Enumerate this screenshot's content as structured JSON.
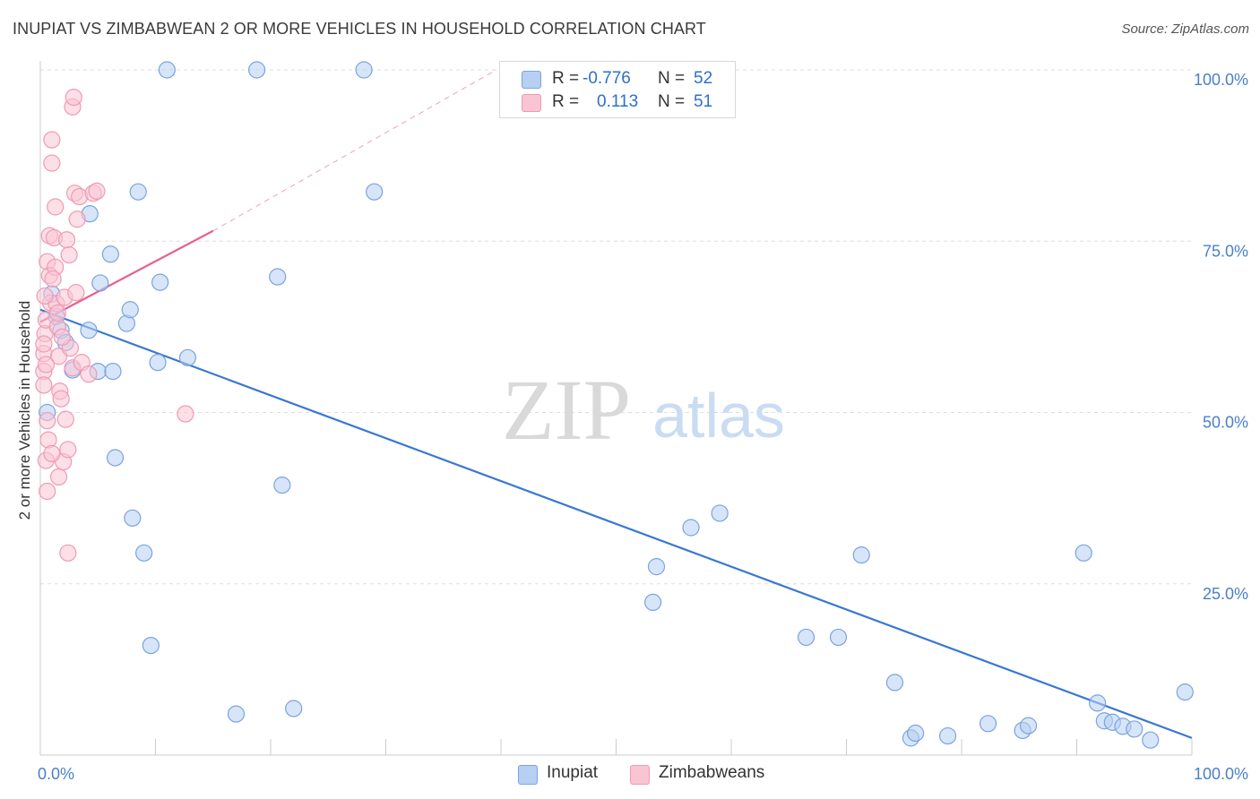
{
  "title": "INUPIAT VS ZIMBABWEAN 2 OR MORE VEHICLES IN HOUSEHOLD CORRELATION CHART",
  "source": "Source: ZipAtlas.com",
  "watermark": {
    "zip": "ZIP",
    "atlas": "atlas"
  },
  "legend": {
    "rows": [
      {
        "r_label": "R =",
        "r_value": "-0.776",
        "n_label": "N =",
        "n_value": "52",
        "fill": "#b7cff2",
        "stroke": "#7aa3e0"
      },
      {
        "r_label": "R =",
        "r_value": "0.113",
        "n_label": "N =",
        "n_value": "51",
        "fill": "#f9c4d4",
        "stroke": "#ef9ab4"
      }
    ]
  },
  "bottom_legend": [
    {
      "label": "Inupiat",
      "fill": "#b7cff2",
      "stroke": "#7aa3e0"
    },
    {
      "label": "Zimbabweans",
      "fill": "#f9c4d4",
      "stroke": "#ef9ab4"
    }
  ],
  "chart_data": {
    "type": "scatter",
    "title": "INUPIAT VS ZIMBABWEAN 2 OR MORE VEHICLES IN HOUSEHOLD CORRELATION CHART",
    "xlabel": "",
    "ylabel": "2 or more Vehicles in Household",
    "xlim": [
      0,
      100
    ],
    "ylim": [
      0,
      100
    ],
    "x_tick_labels": [
      {
        "value": 0,
        "label": "0.0%"
      },
      {
        "value": 100,
        "label": "100.0%"
      }
    ],
    "y_tick_labels": [
      {
        "value": 25,
        "label": "25.0%"
      },
      {
        "value": 50,
        "label": "50.0%"
      },
      {
        "value": 75,
        "label": "75.0%"
      },
      {
        "value": 100,
        "label": "100.0%"
      }
    ],
    "grid": true,
    "legend_position": "top-center",
    "series": [
      {
        "name": "Inupiat",
        "color": "#4a86d9",
        "fill": "#b7cff2",
        "stroke": "#7aa3e0",
        "trend": {
          "x": [
            0,
            100
          ],
          "y": [
            65.0,
            2.5
          ],
          "dashed_to": null,
          "color": "#3a78d0"
        },
        "points": [
          [
            0.6,
            50.0
          ],
          [
            1.0,
            67.3
          ],
          [
            1.4,
            64.0
          ],
          [
            1.8,
            62.0
          ],
          [
            2.2,
            60.2
          ],
          [
            2.8,
            56.2
          ],
          [
            4.2,
            62.0
          ],
          [
            4.3,
            79.0
          ],
          [
            5.2,
            68.9
          ],
          [
            5.0,
            56.0
          ],
          [
            6.1,
            73.1
          ],
          [
            6.3,
            56.0
          ],
          [
            6.5,
            43.4
          ],
          [
            7.5,
            63.0
          ],
          [
            7.8,
            65.0
          ],
          [
            8.5,
            82.2
          ],
          [
            8.0,
            34.6
          ],
          [
            9.0,
            29.5
          ],
          [
            9.6,
            16.0
          ],
          [
            10.4,
            69.0
          ],
          [
            10.2,
            57.3
          ],
          [
            11.0,
            100.0
          ],
          [
            12.8,
            58.0
          ],
          [
            17.0,
            6.0
          ],
          [
            18.8,
            100.0
          ],
          [
            20.6,
            69.8
          ],
          [
            21.0,
            39.4
          ],
          [
            22.0,
            6.8
          ],
          [
            28.1,
            100.0
          ],
          [
            29.0,
            82.2
          ],
          [
            53.5,
            27.5
          ],
          [
            53.2,
            22.3
          ],
          [
            56.5,
            33.2
          ],
          [
            59.0,
            35.3
          ],
          [
            66.5,
            17.2
          ],
          [
            69.3,
            17.2
          ],
          [
            71.3,
            29.2
          ],
          [
            74.2,
            10.6
          ],
          [
            75.6,
            2.5
          ],
          [
            76.0,
            3.2
          ],
          [
            78.8,
            2.8
          ],
          [
            82.3,
            4.6
          ],
          [
            85.3,
            3.6
          ],
          [
            85.8,
            4.3
          ],
          [
            90.6,
            29.5
          ],
          [
            91.8,
            7.6
          ],
          [
            92.4,
            5.0
          ],
          [
            93.1,
            4.8
          ],
          [
            94.0,
            4.2
          ],
          [
            95.0,
            3.8
          ],
          [
            96.4,
            2.2
          ],
          [
            99.4,
            9.2
          ]
        ]
      },
      {
        "name": "Zimbabweans",
        "color": "#e76a95",
        "fill": "#f9c4d4",
        "stroke": "#ef9ab4",
        "trend": {
          "x": [
            0,
            15
          ],
          "y": [
            63.2,
            76.5
          ],
          "dashed_to": [
            39.6,
            100.0
          ],
          "color": "#e8608d"
        },
        "points": [
          [
            0.3,
            58.6
          ],
          [
            0.3,
            56.0
          ],
          [
            0.3,
            54.0
          ],
          [
            0.4,
            61.5
          ],
          [
            0.5,
            63.5
          ],
          [
            0.5,
            43.0
          ],
          [
            0.6,
            38.5
          ],
          [
            0.6,
            48.8
          ],
          [
            0.6,
            72.0
          ],
          [
            0.8,
            75.8
          ],
          [
            0.8,
            70.0
          ],
          [
            0.9,
            66.0
          ],
          [
            1.0,
            89.8
          ],
          [
            1.0,
            86.4
          ],
          [
            1.2,
            75.5
          ],
          [
            1.3,
            80.0
          ],
          [
            1.3,
            71.2
          ],
          [
            1.4,
            65.9
          ],
          [
            1.5,
            62.5
          ],
          [
            1.6,
            58.2
          ],
          [
            1.6,
            40.6
          ],
          [
            1.7,
            53.1
          ],
          [
            1.8,
            52.0
          ],
          [
            2.0,
            42.8
          ],
          [
            2.1,
            66.8
          ],
          [
            2.3,
            75.2
          ],
          [
            2.4,
            44.6
          ],
          [
            2.4,
            29.5
          ],
          [
            2.5,
            73.0
          ],
          [
            2.6,
            59.4
          ],
          [
            2.8,
            56.5
          ],
          [
            2.8,
            94.6
          ],
          [
            2.9,
            96.0
          ],
          [
            3.0,
            82.0
          ],
          [
            3.1,
            67.5
          ],
          [
            3.2,
            78.2
          ],
          [
            3.4,
            81.5
          ],
          [
            3.6,
            57.3
          ],
          [
            4.2,
            55.6
          ],
          [
            4.6,
            82.0
          ],
          [
            4.9,
            82.3
          ],
          [
            12.6,
            49.8
          ],
          [
            0.3,
            60.0
          ],
          [
            0.5,
            57.0
          ],
          [
            0.7,
            46.0
          ],
          [
            1.1,
            69.5
          ],
          [
            1.5,
            64.5
          ],
          [
            1.9,
            61.0
          ],
          [
            2.2,
            49.0
          ],
          [
            0.4,
            67.0
          ],
          [
            1.0,
            44.0
          ]
        ]
      }
    ]
  }
}
